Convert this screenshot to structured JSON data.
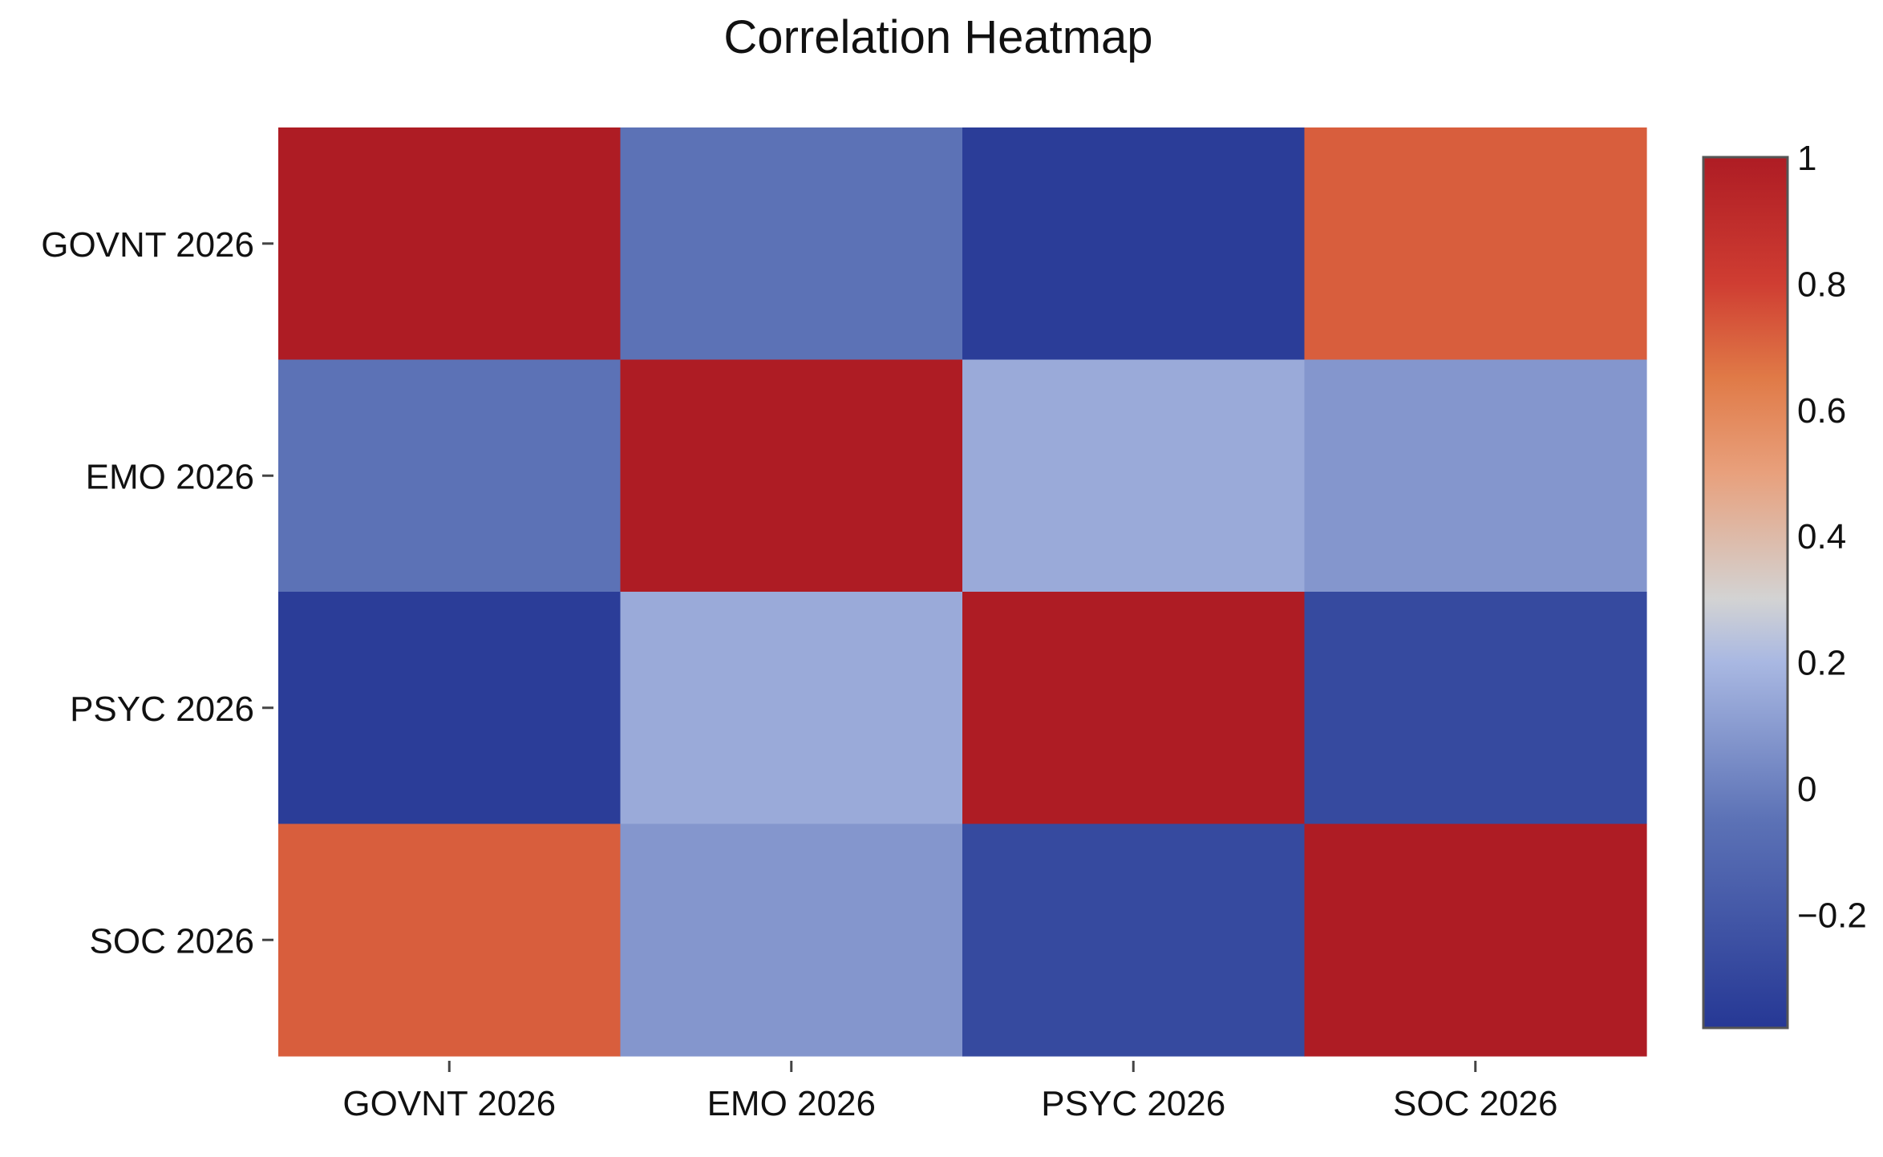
{
  "chart_data": {
    "type": "heatmap",
    "title": "Correlation Heatmap",
    "x_categories": [
      "GOVNT 2026",
      "EMO 2026",
      "PSYC 2026",
      "SOC 2026"
    ],
    "y_categories": [
      "GOVNT 2026",
      "EMO 2026",
      "PSYC 2026",
      "SOC 2026"
    ],
    "values": [
      [
        1.0,
        -0.05,
        -0.35,
        0.72
      ],
      [
        -0.05,
        1.0,
        0.15,
        0.08
      ],
      [
        -0.35,
        0.15,
        1.0,
        -0.28
      ],
      [
        0.72,
        0.08,
        -0.28,
        1.0
      ]
    ],
    "colorbar": {
      "min": -0.38,
      "max": 1.0,
      "ticks": [
        1,
        0.8,
        0.6,
        0.4,
        0.2,
        0,
        -0.2
      ],
      "tick_labels": [
        "1",
        "0.8",
        "0.6",
        "0.4",
        "0.2",
        "0",
        "−0.2"
      ],
      "colorscale": [
        [
          -0.38,
          "#263895"
        ],
        [
          -0.05,
          "#5c72b6"
        ],
        [
          0.2,
          "#a9b8e2"
        ],
        [
          0.3,
          "#d3d3d3"
        ],
        [
          0.5,
          "#e8a07c"
        ],
        [
          0.65,
          "#e07a47"
        ],
        [
          0.8,
          "#cf3d32"
        ],
        [
          1.0,
          "#ae1c24"
        ]
      ]
    }
  }
}
